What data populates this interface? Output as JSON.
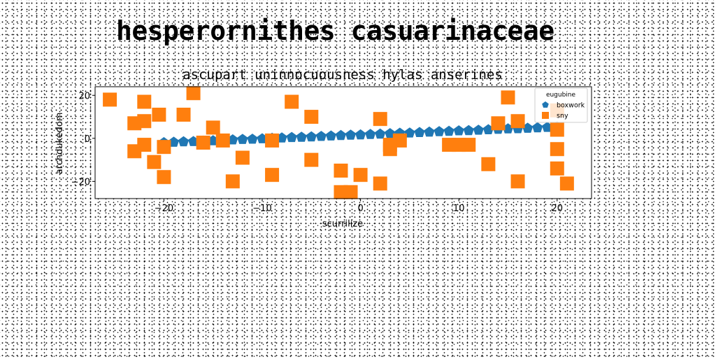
{
  "page": {
    "title": "hesperornithes casuarinaceae"
  },
  "chart_data": {
    "type": "scatter",
    "title": "ascupart uninnocuousness hylas anserines",
    "xlabel": "scurrilize",
    "ylabel": "archdukedom",
    "xlim": [
      -27,
      23.5
    ],
    "ylim": [
      -28,
      24
    ],
    "xticks": [
      -20,
      -10,
      0,
      10,
      20
    ],
    "yticks": [
      -20,
      0,
      20
    ],
    "grid": false,
    "legend": {
      "title": "eugubine",
      "placement": "top-right"
    },
    "series": [
      {
        "name": "boxwork",
        "marker": "pentagon",
        "color": "#1f77b4",
        "x": [
          -20,
          -19,
          -18,
          -17,
          -16,
          -15,
          -14,
          -13,
          -12,
          -11,
          -10,
          -9,
          -8,
          -7,
          -6,
          -5,
          -4,
          -3,
          -2,
          -1,
          0,
          1,
          2,
          3,
          4,
          5,
          6,
          7,
          8,
          9,
          10,
          11,
          12,
          13,
          14,
          15,
          16,
          17,
          18,
          19,
          20
        ],
        "y": [
          -2,
          -1.8,
          -1.6,
          -1.5,
          -1.3,
          -1.1,
          -0.9,
          -0.7,
          -0.5,
          -0.4,
          -0.2,
          0,
          0.2,
          0.4,
          0.5,
          0.7,
          0.9,
          1.1,
          1.3,
          1.5,
          1.6,
          1.8,
          2,
          2.2,
          2.4,
          2.5,
          2.7,
          2.9,
          3.1,
          3.3,
          3.5,
          3.6,
          3.8,
          4,
          4.2,
          4.4,
          4.5,
          4.7,
          4.9,
          5.1,
          5.3
        ]
      },
      {
        "name": "sny",
        "marker": "square",
        "color": "#ff7f0e",
        "x": [
          -25.5,
          -17,
          -22,
          -20.5,
          -23,
          -18,
          -15,
          -22,
          -23,
          -14,
          -16,
          -22,
          -9,
          -20,
          -21,
          -12,
          -7,
          -5,
          -9,
          -5,
          -13,
          -20,
          -2,
          0,
          -2,
          -1,
          2,
          2,
          3,
          4,
          3,
          9,
          10,
          11,
          13,
          14,
          15,
          16,
          20,
          20,
          20,
          20,
          21,
          16
        ],
        "y": [
          18,
          21,
          17,
          11,
          7,
          11,
          5,
          8,
          -6,
          -1,
          -2,
          -3,
          -1,
          -4,
          -11,
          -9,
          17,
          10,
          -17,
          -10,
          -20,
          -18,
          -15,
          -17,
          -25,
          -25,
          9,
          -21,
          -5,
          -1,
          -3,
          -3,
          -3,
          -3,
          -12,
          7,
          19,
          8,
          13,
          4,
          -5,
          -14,
          -21,
          -20
        ]
      }
    ]
  }
}
